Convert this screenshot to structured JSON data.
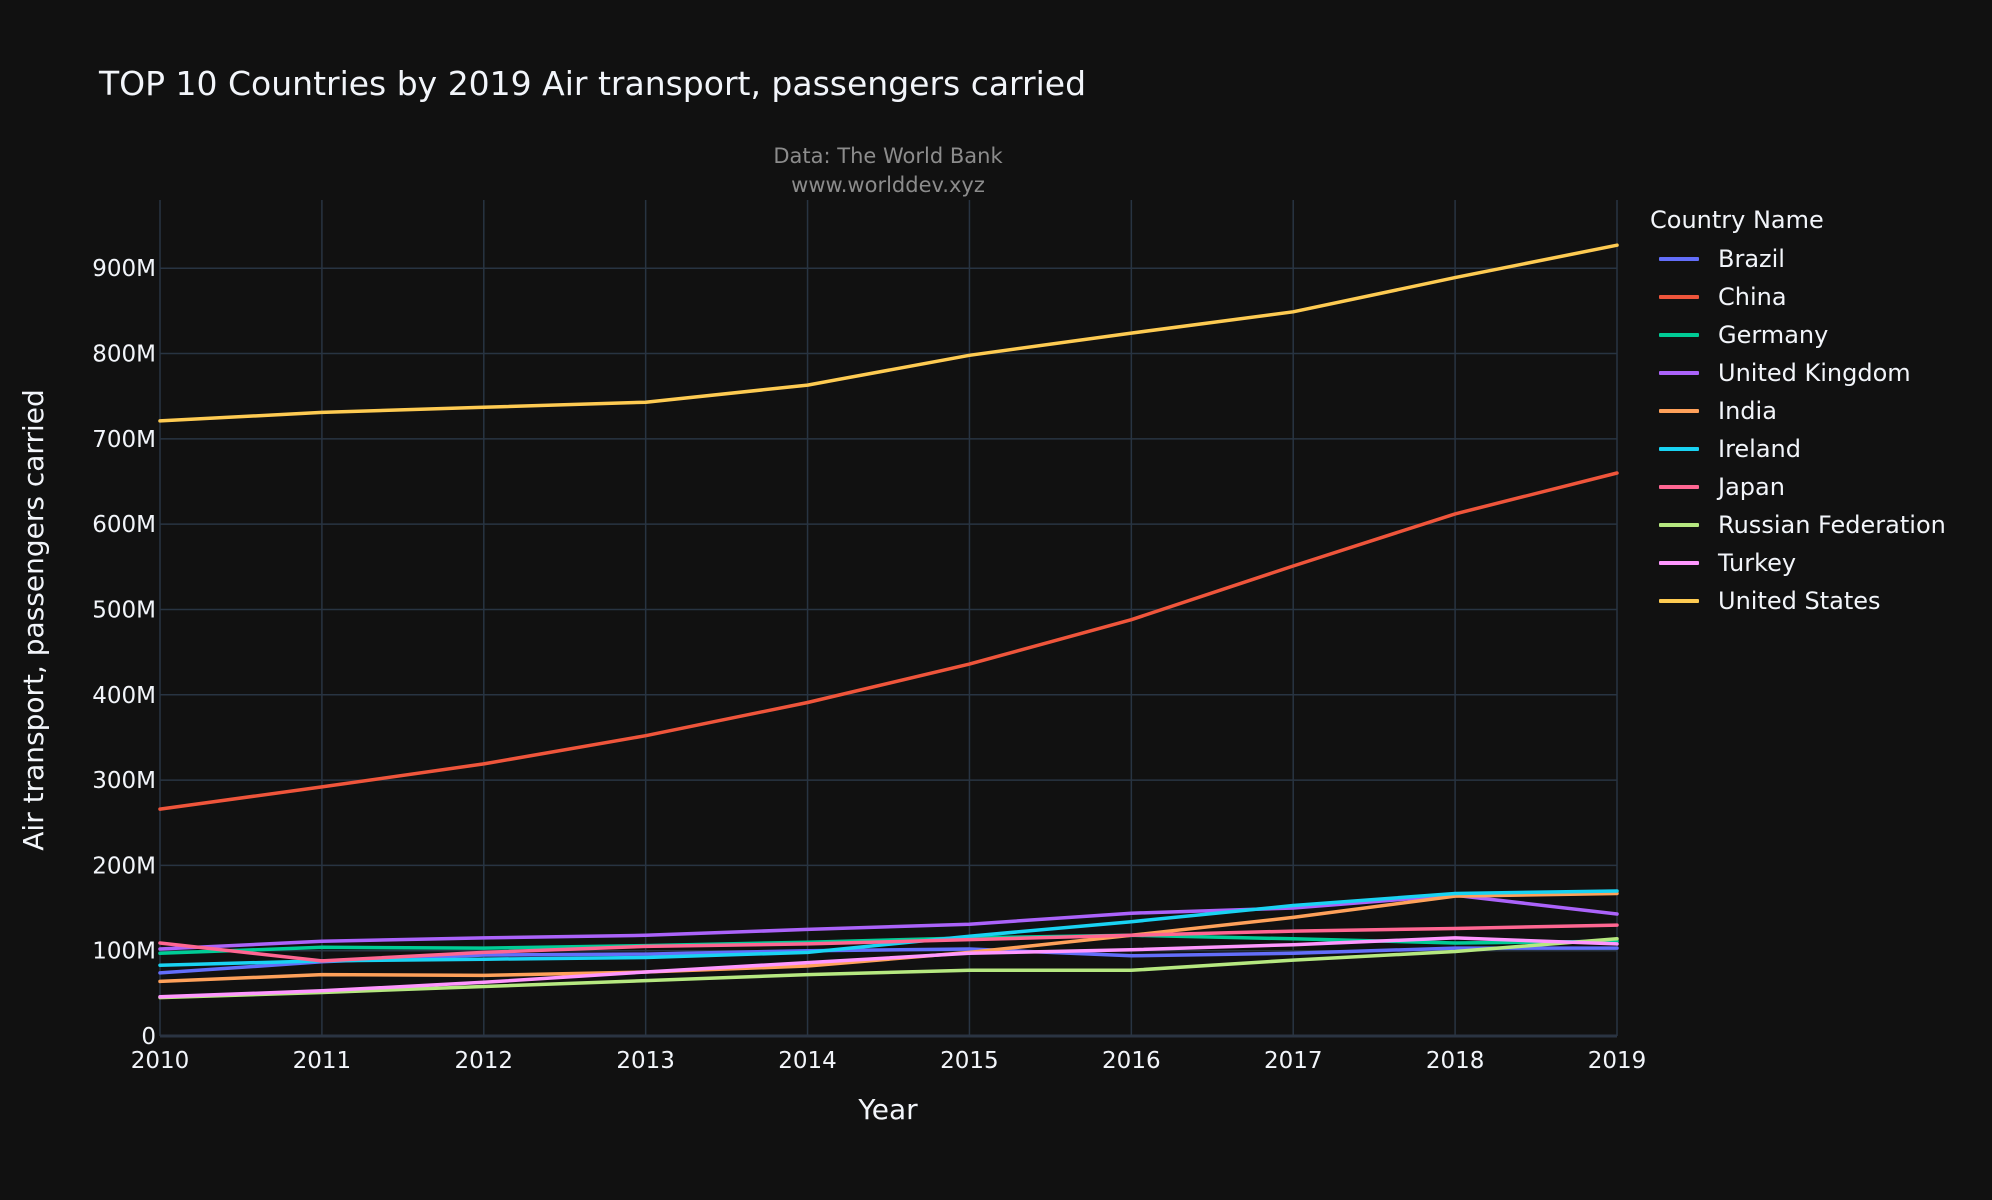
{
  "chart_data": {
    "type": "line",
    "title": "TOP 10 Countries by 2019 Air transport, passengers carried",
    "subtitle_lines": [
      "Data: The World Bank",
      "www.worlddev.xyz"
    ],
    "xlabel": "Year",
    "ylabel": "Air transport, passengers carried",
    "legend_title": "Country Name",
    "legend_position": "right",
    "grid": true,
    "xlim": [
      2010,
      2019
    ],
    "ylim": [
      0,
      980000000
    ],
    "x": [
      2010,
      2011,
      2012,
      2013,
      2014,
      2015,
      2016,
      2017,
      2018,
      2019
    ],
    "x_ticks": [
      2010,
      2011,
      2012,
      2013,
      2014,
      2015,
      2016,
      2017,
      2018,
      2019
    ],
    "y_ticks": [
      {
        "value": 0,
        "label": "0"
      },
      {
        "value": 100000000,
        "label": "100M"
      },
      {
        "value": 200000000,
        "label": "200M"
      },
      {
        "value": 300000000,
        "label": "300M"
      },
      {
        "value": 400000000,
        "label": "400M"
      },
      {
        "value": 500000000,
        "label": "500M"
      },
      {
        "value": 600000000,
        "label": "600M"
      },
      {
        "value": 700000000,
        "label": "700M"
      },
      {
        "value": 800000000,
        "label": "800M"
      },
      {
        "value": 900000000,
        "label": "900M"
      }
    ],
    "series": [
      {
        "name": "Brazil",
        "color": "#636efa",
        "values": [
          74000000,
          87000000,
          95000000,
          96000000,
          100000000,
          102000000,
          94000000,
          97000000,
          103000000,
          103000000
        ]
      },
      {
        "name": "China",
        "color": "#ef553b",
        "values": [
          266000000,
          292000000,
          319000000,
          352000000,
          391000000,
          436000000,
          488000000,
          551000000,
          612000000,
          660000000
        ]
      },
      {
        "name": "Germany",
        "color": "#00cc96",
        "values": [
          97000000,
          104000000,
          103000000,
          106000000,
          110000000,
          115000000,
          118000000,
          114000000,
          109000000,
          111000000
        ]
      },
      {
        "name": "United Kingdom",
        "color": "#ab63fa",
        "values": [
          102000000,
          111000000,
          115000000,
          118000000,
          125000000,
          131000000,
          144000000,
          150000000,
          165000000,
          143000000
        ]
      },
      {
        "name": "India",
        "color": "#ffa15a",
        "values": [
          64000000,
          72000000,
          71000000,
          75000000,
          82000000,
          98000000,
          118000000,
          139000000,
          164000000,
          167000000
        ]
      },
      {
        "name": "Ireland",
        "color": "#19d3f3",
        "values": [
          83000000,
          88000000,
          90000000,
          92000000,
          98000000,
          117000000,
          134000000,
          153000000,
          167000000,
          170000000
        ]
      },
      {
        "name": "Japan",
        "color": "#ff6692",
        "values": [
          109000000,
          88000000,
          98000000,
          105000000,
          108000000,
          113000000,
          118000000,
          123000000,
          126000000,
          130000000
        ]
      },
      {
        "name": "Russian Federation",
        "color": "#b6e880",
        "values": [
          45000000,
          51000000,
          58000000,
          65000000,
          72000000,
          77000000,
          77000000,
          89000000,
          99000000,
          114000000
        ]
      },
      {
        "name": "Turkey",
        "color": "#ff97ff",
        "values": [
          46000000,
          53000000,
          63000000,
          75000000,
          86000000,
          97000000,
          101000000,
          107000000,
          115000000,
          108000000
        ]
      },
      {
        "name": "United States",
        "color": "#fecb52",
        "values": [
          721000000,
          731000000,
          737000000,
          743000000,
          763000000,
          798000000,
          824000000,
          849000000,
          889000000,
          927000000
        ]
      }
    ]
  }
}
